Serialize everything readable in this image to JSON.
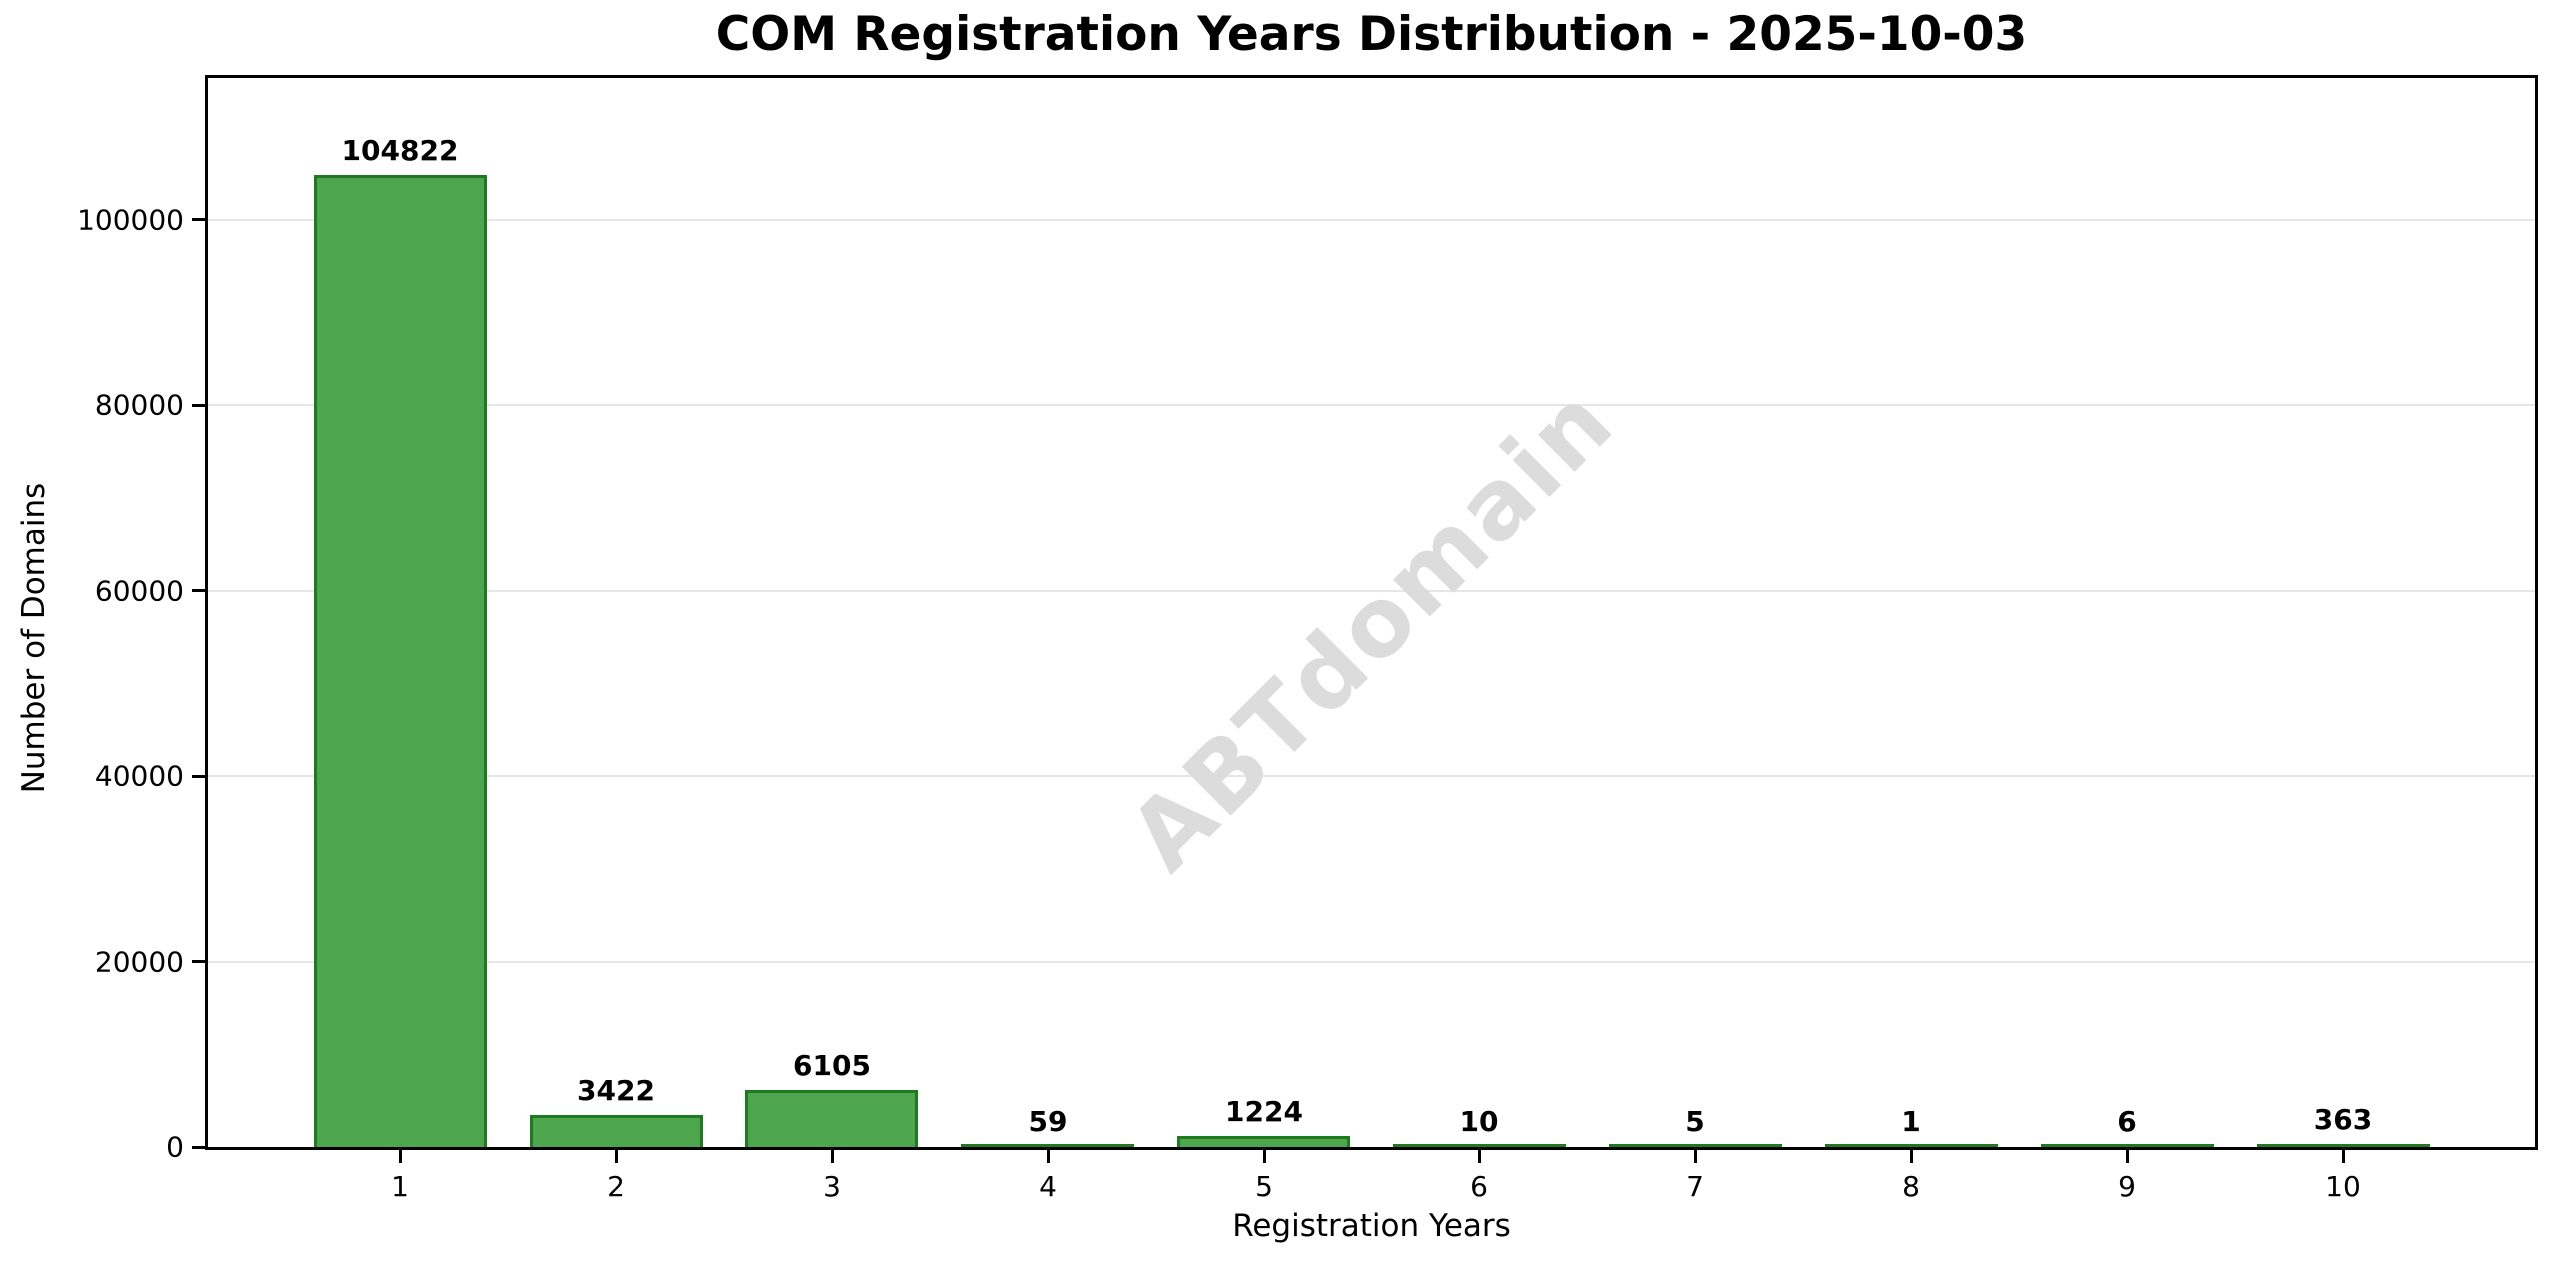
{
  "chart_data": {
    "type": "bar",
    "title": "COM Registration Years Distribution - 2025-10-03",
    "xlabel": "Registration Years",
    "ylabel": "Number of Domains",
    "watermark": "ABTdomain",
    "categories": [
      "1",
      "2",
      "3",
      "4",
      "5",
      "6",
      "7",
      "8",
      "9",
      "10"
    ],
    "values": [
      104822,
      3422,
      6105,
      59,
      1224,
      10,
      5,
      1,
      6,
      363
    ],
    "bar_labels": [
      "104822",
      "3422",
      "6105",
      "59",
      "1224",
      "10",
      "5",
      "1",
      "6",
      "363"
    ],
    "ylim": [
      0,
      115304
    ],
    "yticks": [
      0,
      20000,
      40000,
      60000,
      80000,
      100000
    ],
    "ytick_labels": [
      "0",
      "20000",
      "40000",
      "60000",
      "80000",
      "100000"
    ],
    "grid": true,
    "legend": "none",
    "colors": {
      "bar_fill": "#4DA64D",
      "bar_edge": "#1F7A1F",
      "grid": "#e6e6e6",
      "spine": "#000000",
      "watermark": "#dcdcdc",
      "text": "#000000",
      "background": "#ffffff"
    }
  }
}
